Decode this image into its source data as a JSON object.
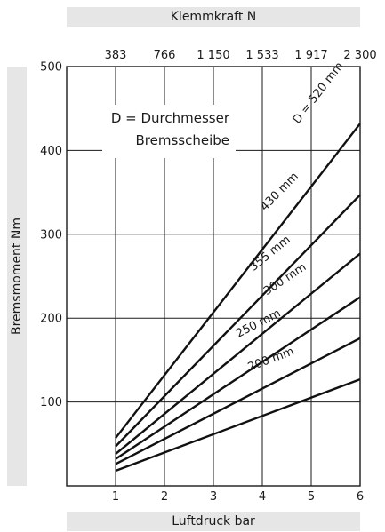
{
  "chart_data": {
    "type": "line",
    "xlabel": "Luftdruck bar",
    "ylabel": "Bremsmoment Nm",
    "top_axis_label": "Klemmkraft N",
    "top_ticks": [
      "383",
      "766",
      "1 150",
      "1 533",
      "1 917",
      "2 300"
    ],
    "x_ticks": [
      1,
      2,
      3,
      4,
      5,
      6
    ],
    "y_ticks": [
      100,
      200,
      300,
      400,
      500
    ],
    "xlim": [
      0,
      6
    ],
    "ylim": [
      0,
      500
    ],
    "grid": true,
    "annotation_line1": "D = Durchmesser",
    "annotation_line2": "Bremsscheibe",
    "series": [
      {
        "name": "D = 520 mm",
        "x": [
          1,
          6
        ],
        "y": [
          57,
          432
        ]
      },
      {
        "name": "430 mm",
        "x": [
          1,
          6
        ],
        "y": [
          47,
          347
        ]
      },
      {
        "name": "355 mm",
        "x": [
          1,
          6
        ],
        "y": [
          38,
          277
        ]
      },
      {
        "name": "300 mm",
        "x": [
          1,
          6
        ],
        "y": [
          32,
          225
        ]
      },
      {
        "name": "250 mm",
        "x": [
          1,
          6
        ],
        "y": [
          26,
          176
        ]
      },
      {
        "name": "200 mm",
        "x": [
          1,
          6
        ],
        "y": [
          18,
          127
        ]
      }
    ]
  }
}
